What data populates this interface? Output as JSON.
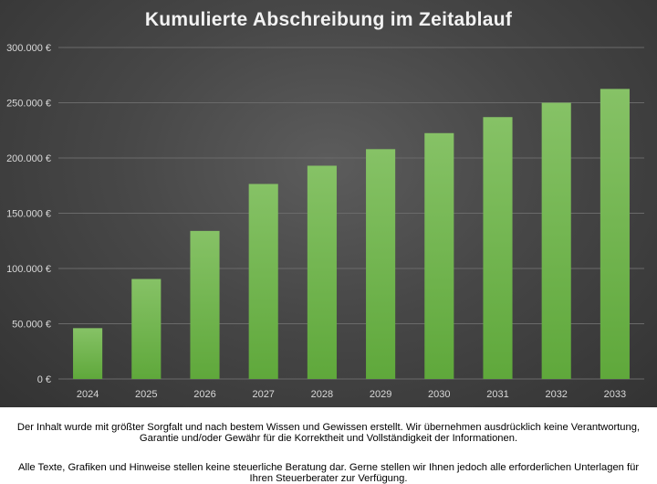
{
  "chart_data": {
    "type": "bar",
    "title": "Kumulierte Abschreibung im Zeitablauf",
    "categories": [
      "2024",
      "2025",
      "2026",
      "2027",
      "2028",
      "2029",
      "2030",
      "2031",
      "2032",
      "2033"
    ],
    "values": [
      46000,
      90500,
      134000,
      176500,
      193000,
      208000,
      222500,
      237000,
      250000,
      262500
    ],
    "ylim": [
      0,
      300000
    ],
    "yticks": [
      0,
      50000,
      100000,
      150000,
      200000,
      250000,
      300000
    ],
    "ytick_labels": [
      "0 €",
      "50.000 €",
      "100.000 €",
      "150.000 €",
      "200.000 €",
      "250.000 €",
      "300.000 €"
    ],
    "xlabel": "",
    "ylabel": "",
    "grid": true,
    "bar_color_top": "#86c266",
    "bar_color_bottom": "#5fa83b",
    "background_color": "#474747"
  },
  "disclaimer": {
    "line1": "Der Inhalt wurde mit größter Sorgfalt und nach bestem Wissen und Gewissen erstellt. Wir übernehmen ausdrücklich keine Verantwortung, Garantie und/oder Gewähr für die Korrektheit und Vollständigkeit der Informationen.",
    "line2": "Alle Texte, Grafiken und Hinweise stellen keine steuerliche Beratung dar. Gerne stellen wir Ihnen jedoch alle erforderlichen Unterlagen für Ihren Steuerberater zur Verfügung."
  }
}
